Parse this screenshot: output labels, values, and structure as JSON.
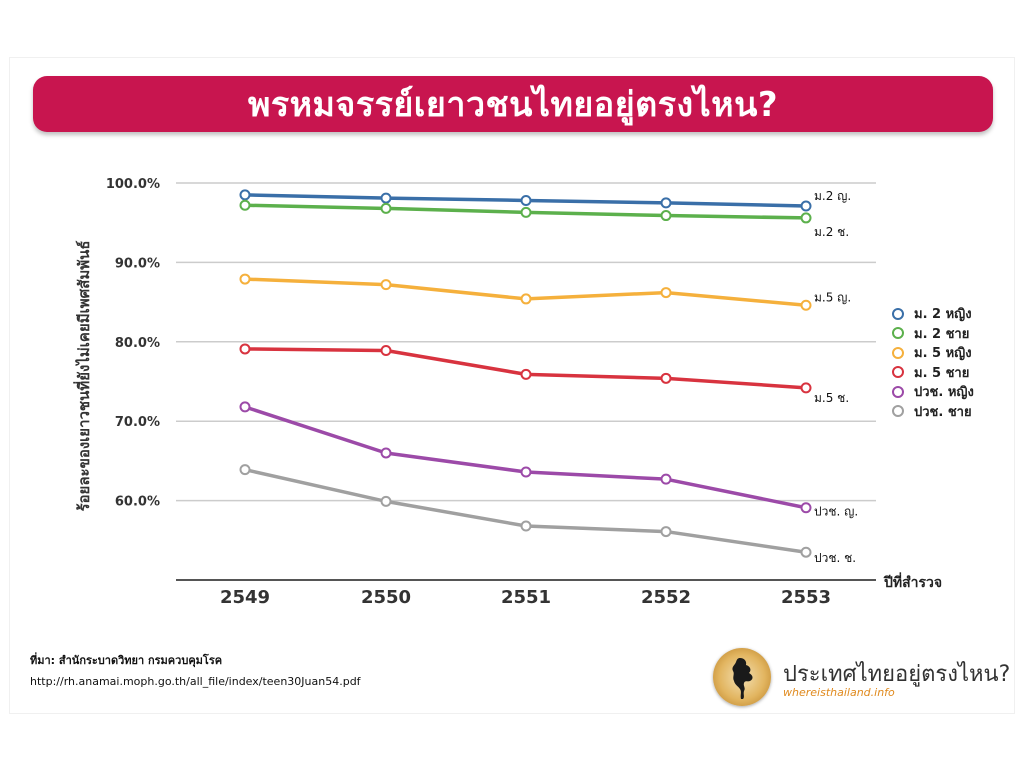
{
  "title": "พรหมจรรย์เยาวชนไทยอยู่ตรงไหน?",
  "chart_data": {
    "type": "line",
    "x": [
      "2549",
      "2550",
      "2551",
      "2552",
      "2553"
    ],
    "xlabel": "ปีที่สำรวจ",
    "ylabel": "ร้อยละของเยาวชนที่ยังไม่เคยมีเพศสัมพันธ์",
    "ylim": [
      50,
      100
    ],
    "yticks": [
      "100.0%",
      "90.0%",
      "80.0%",
      "70.0%",
      "60.0%"
    ],
    "ytick_values": [
      100,
      90,
      80,
      70,
      60
    ],
    "grid": true,
    "legend_position": "right",
    "series": [
      {
        "name": "ม. 2 หญิง",
        "end_label": "ม.2 ญ.",
        "color": "#3a6fa8",
        "values": [
          98.5,
          98.1,
          97.8,
          97.5,
          97.1
        ]
      },
      {
        "name": "ม. 2 ชาย",
        "end_label": "ม.2 ช.",
        "color": "#5cb04c",
        "values": [
          97.2,
          96.8,
          96.3,
          95.9,
          95.6
        ]
      },
      {
        "name": "ม. 5 หญิง",
        "end_label": "ม.5 ญ.",
        "color": "#f5b03c",
        "values": [
          87.9,
          87.2,
          85.4,
          86.2,
          84.6
        ]
      },
      {
        "name": "ม. 5 ชาย",
        "end_label": "ม.5 ช.",
        "color": "#d8333f",
        "values": [
          79.1,
          78.9,
          75.9,
          75.4,
          74.2
        ]
      },
      {
        "name": "ปวช. หญิง",
        "end_label": "ปวช. ญ.",
        "color": "#9c4aa8",
        "values": [
          71.8,
          66.0,
          63.6,
          62.7,
          59.1
        ]
      },
      {
        "name": "ปวช. ชาย",
        "end_label": "ปวช. ช.",
        "color": "#a0a0a0",
        "values": [
          63.9,
          59.9,
          56.8,
          56.1,
          53.5
        ]
      }
    ]
  },
  "source": {
    "line1": "ที่มา: สำนักระบาดวิทยา กรมควบคุมโรค",
    "line2": "http://rh.anamai.moph.go.th/all_file/index/teen30Juan54.pdf"
  },
  "brand": {
    "name": "ประเทศไทยอยู่ตรงไหน?",
    "url": "whereisthailand.info",
    "logo_icon": "thailand-map-icon"
  }
}
